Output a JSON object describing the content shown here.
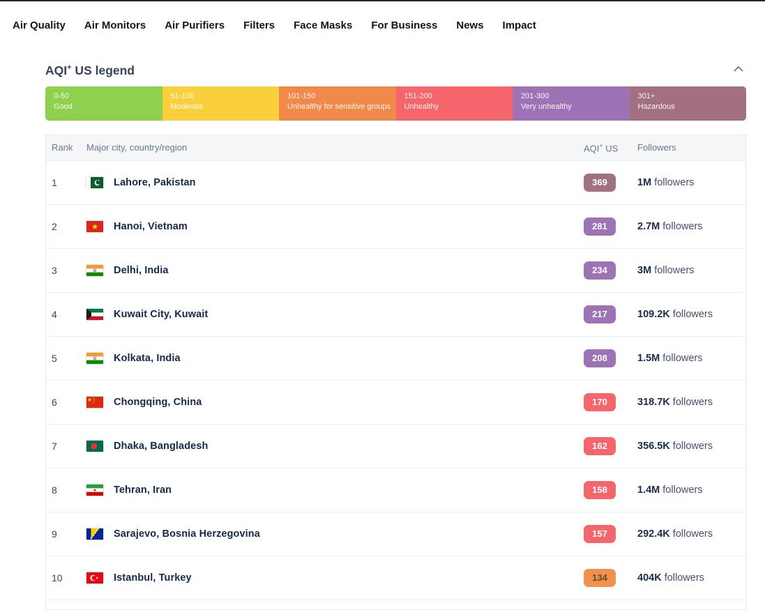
{
  "nav": {
    "items": [
      {
        "label": "Air Quality"
      },
      {
        "label": "Air Monitors"
      },
      {
        "label": "Air Purifiers"
      },
      {
        "label": "Filters"
      },
      {
        "label": "Face Masks"
      },
      {
        "label": "For Business"
      },
      {
        "label": "News"
      },
      {
        "label": "Impact"
      }
    ]
  },
  "legend": {
    "title_base": "AQI",
    "title_sup": "+",
    "title_rest": " US legend",
    "bands": [
      {
        "range": "0-50",
        "label": "Good",
        "color": "#8fd14f"
      },
      {
        "range": "51-100",
        "label": "Moderate",
        "color": "#f9cf3b"
      },
      {
        "range": "101-150",
        "label": "Unhealthy for sensitive groups",
        "color": "#f0894a"
      },
      {
        "range": "151-200",
        "label": "Unhealthy",
        "color": "#f4666b"
      },
      {
        "range": "201-300",
        "label": "Very unhealthy",
        "color": "#9d73b6"
      },
      {
        "range": "301+",
        "label": "Hazardous",
        "color": "#a2707f"
      }
    ]
  },
  "table": {
    "headers": {
      "rank": "Rank",
      "city": "Major city, country/region",
      "aqi_base": "AQI",
      "aqi_sup": "+",
      "aqi_rest": " US",
      "followers": "Followers"
    },
    "rows": [
      {
        "rank": "1",
        "flag": "pakistan",
        "city": "Lahore, Pakistan",
        "aqi": "369",
        "aqi_color": "#a2707f",
        "aqi_text_color": "#ffffff",
        "followers_count": "1M",
        "followers_word": "followers"
      },
      {
        "rank": "2",
        "flag": "vietnam",
        "city": "Hanoi, Vietnam",
        "aqi": "281",
        "aqi_color": "#9d73b6",
        "aqi_text_color": "#ffffff",
        "followers_count": "2.7M",
        "followers_word": "followers"
      },
      {
        "rank": "3",
        "flag": "india",
        "city": "Delhi, India",
        "aqi": "234",
        "aqi_color": "#9d73b6",
        "aqi_text_color": "#ffffff",
        "followers_count": "3M",
        "followers_word": "followers"
      },
      {
        "rank": "4",
        "flag": "kuwait",
        "city": "Kuwait City, Kuwait",
        "aqi": "217",
        "aqi_color": "#9d73b6",
        "aqi_text_color": "#ffffff",
        "followers_count": "109.2K",
        "followers_word": "followers"
      },
      {
        "rank": "5",
        "flag": "india",
        "city": "Kolkata, India",
        "aqi": "208",
        "aqi_color": "#9d73b6",
        "aqi_text_color": "#ffffff",
        "followers_count": "1.5M",
        "followers_word": "followers"
      },
      {
        "rank": "6",
        "flag": "china",
        "city": "Chongqing, China",
        "aqi": "170",
        "aqi_color": "#f4666b",
        "aqi_text_color": "#ffffff",
        "followers_count": "318.7K",
        "followers_word": "followers"
      },
      {
        "rank": "7",
        "flag": "bangladesh",
        "city": "Dhaka, Bangladesh",
        "aqi": "162",
        "aqi_color": "#f4666b",
        "aqi_text_color": "#ffffff",
        "followers_count": "356.5K",
        "followers_word": "followers"
      },
      {
        "rank": "8",
        "flag": "iran",
        "city": "Tehran, Iran",
        "aqi": "158",
        "aqi_color": "#f4666b",
        "aqi_text_color": "#ffffff",
        "followers_count": "1.4M",
        "followers_word": "followers"
      },
      {
        "rank": "9",
        "flag": "bosnia",
        "city": "Sarajevo, Bosnia Herzegovina",
        "aqi": "157",
        "aqi_color": "#f4666b",
        "aqi_text_color": "#ffffff",
        "followers_count": "292.4K",
        "followers_word": "followers"
      },
      {
        "rank": "10",
        "flag": "turkey",
        "city": "Istanbul, Turkey",
        "aqi": "134",
        "aqi_color": "#f0914d",
        "aqi_text_color": "#5f4a2e",
        "followers_count": "404K",
        "followers_word": "followers"
      }
    ]
  }
}
